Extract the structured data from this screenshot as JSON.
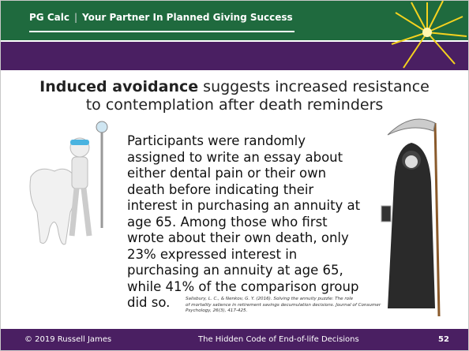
{
  "header": {
    "brand": "PG Calc",
    "separator": "|",
    "tagline": "Your Partner In Planned Giving Success"
  },
  "title": {
    "bold": "Induced avoidance",
    "rest": "suggests increased resistance to contemplation after death reminders"
  },
  "body": {
    "lines": [
      "Participants were randomly",
      "assigned to write an essay about",
      "either dental pain or their own",
      "death before indicating their",
      "interest in purchasing an annuity at",
      "age 65. Among those who first",
      "wrote about their own death, only",
      "23% expressed interest in",
      "purchasing an annuity at age 65,",
      "while 41% of the comparison group",
      "did so."
    ]
  },
  "citation": {
    "lines": [
      "Salisbury, L. C., & Nenkov, G. Y. (2016). Solving the annuity puzzle: The role",
      "of mortality salience in retirement savings decumulation decisions. Journal of Consumer",
      "Psychology, 26(3), 417-425."
    ]
  },
  "footer": {
    "left": "© 2019 Russell James",
    "center": "The Hidden Code of End-of-life Decisions",
    "page": "52"
  }
}
